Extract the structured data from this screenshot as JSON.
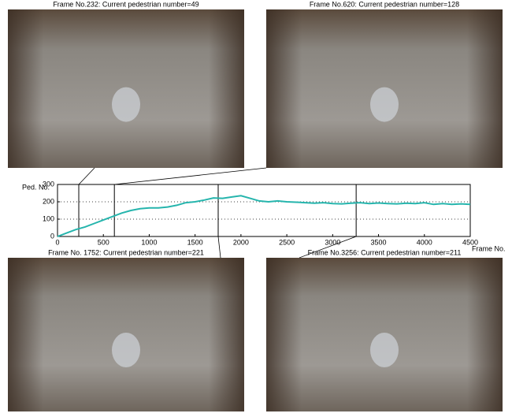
{
  "panels": [
    {
      "title": "Frame No.232: Current pedestrian number=49"
    },
    {
      "title": "Frame No.620: Current pedestrian number=128"
    },
    {
      "title": "Frame No. 1752: Current pedestrian number=221"
    },
    {
      "title": "Frame No.3256: Current pedestrian number=211"
    }
  ],
  "chart_data": {
    "type": "line",
    "y_label": "Ped. No.",
    "x_label": "Frame No.",
    "x": [
      0,
      100,
      200,
      300,
      400,
      500,
      600,
      700,
      800,
      900,
      1000,
      1100,
      1200,
      1300,
      1400,
      1500,
      1600,
      1700,
      1800,
      1900,
      2000,
      2100,
      2200,
      2300,
      2400,
      2500,
      2600,
      2700,
      2800,
      2900,
      3000,
      3100,
      3200,
      3300,
      3400,
      3500,
      3600,
      3700,
      3800,
      3900,
      4000,
      4100,
      4200,
      4300,
      4400,
      4500
    ],
    "series": [
      {
        "name": "Ped. No.",
        "color": "#26b5ad",
        "values": [
          0,
          20,
          40,
          55,
          75,
          95,
          115,
          135,
          150,
          160,
          165,
          165,
          170,
          180,
          195,
          200,
          210,
          222,
          220,
          228,
          235,
          220,
          205,
          200,
          205,
          200,
          198,
          195,
          192,
          195,
          190,
          188,
          192,
          195,
          190,
          193,
          190,
          188,
          192,
          190,
          195,
          185,
          190,
          185,
          188,
          185
        ]
      }
    ],
    "highlight_frames": [
      232,
      620,
      1752,
      3256
    ],
    "xlim": [
      0,
      4500
    ],
    "ylim": [
      0,
      300
    ],
    "xticks": [
      0,
      500,
      1000,
      1500,
      2000,
      2500,
      3000,
      3500,
      4000,
      4500
    ],
    "yticks": [
      0,
      100,
      200,
      300
    ],
    "grid": true
  }
}
